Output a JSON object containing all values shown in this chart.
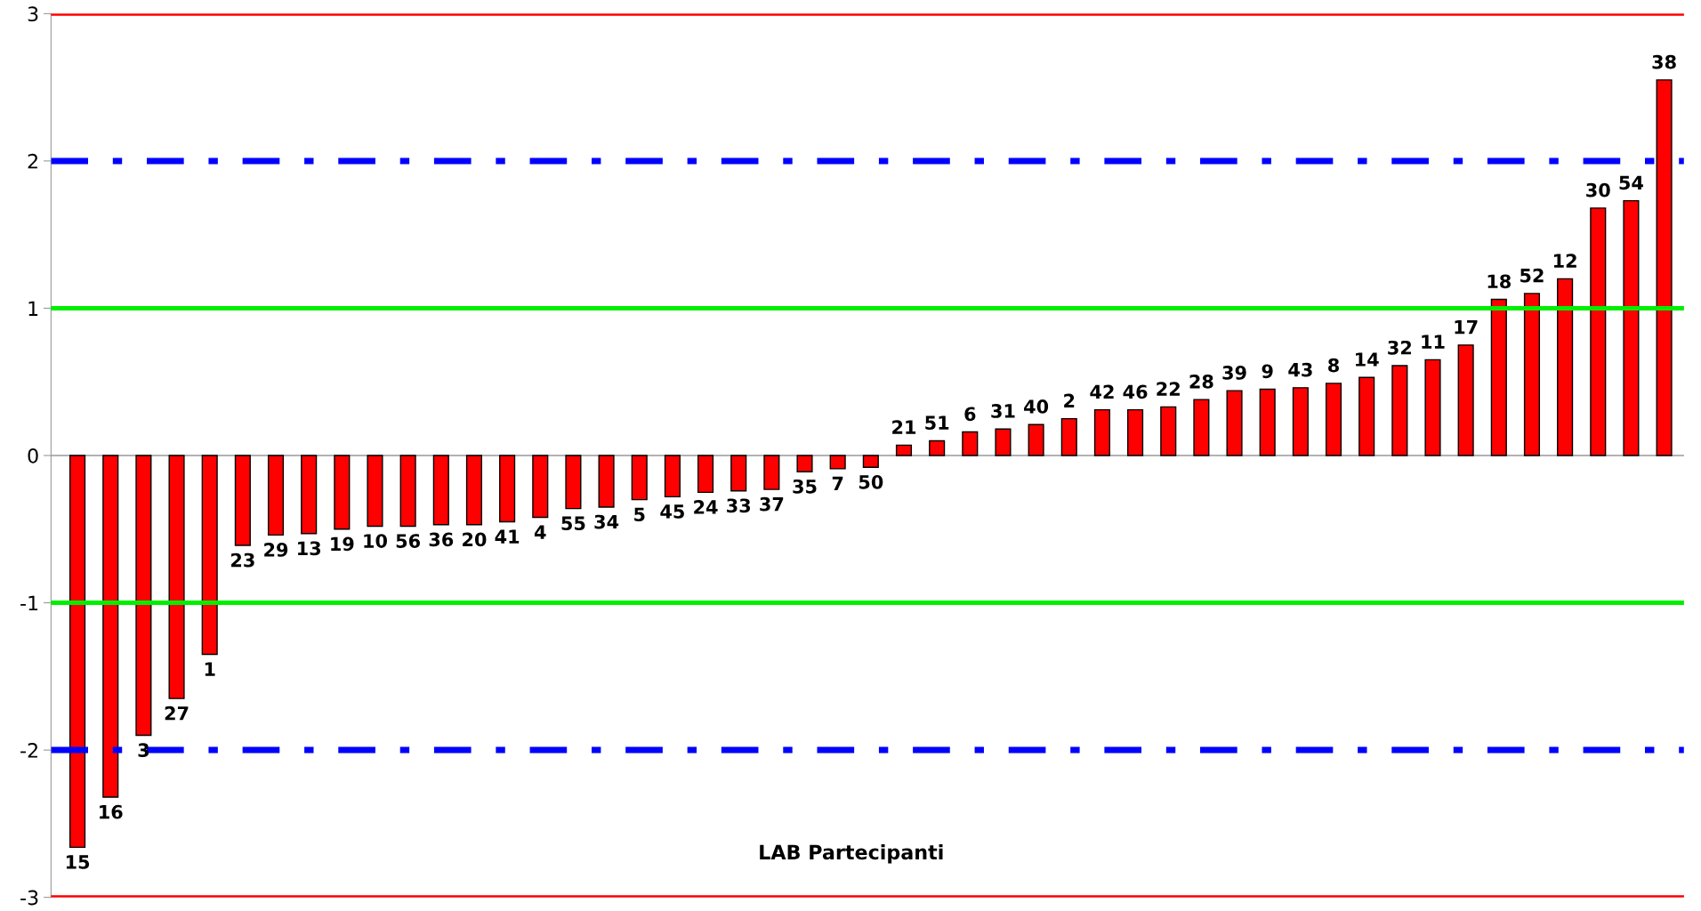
{
  "chart_data": {
    "type": "bar",
    "xlabel": "LAB Partecipanti",
    "categories": [
      "15",
      "16",
      "3",
      "27",
      "1",
      "23",
      "29",
      "13",
      "19",
      "10",
      "56",
      "36",
      "20",
      "41",
      "4",
      "55",
      "34",
      "5",
      "45",
      "24",
      "33",
      "37",
      "35",
      "7",
      "50",
      "21",
      "51",
      "6",
      "31",
      "40",
      "2",
      "42",
      "46",
      "22",
      "28",
      "39",
      "9",
      "43",
      "8",
      "14",
      "32",
      "11",
      "17",
      "18",
      "52",
      "12",
      "30",
      "54",
      "38"
    ],
    "series": [
      {
        "color": "#ff0000",
        "values": [
          -2.66,
          -2.32,
          -1.9,
          -1.65,
          -1.35,
          -0.61,
          -0.54,
          -0.53,
          -0.5,
          -0.48,
          -0.48,
          -0.47,
          -0.47,
          -0.45,
          -0.42,
          -0.36,
          -0.35,
          -0.3,
          -0.28,
          -0.25,
          -0.24,
          -0.23,
          -0.11,
          -0.09,
          -0.08,
          0.07,
          0.1,
          0.16,
          0.18,
          0.21,
          0.25,
          0.31,
          0.31,
          0.33,
          0.38,
          0.44,
          0.45,
          0.46,
          0.49,
          0.53,
          0.61,
          0.65,
          0.75,
          1.06,
          1.1,
          1.2,
          1.68,
          1.73,
          2.55
        ]
      }
    ],
    "ylim": [
      -3,
      3
    ],
    "yticks": [
      -3,
      -2,
      -1,
      0,
      1,
      2,
      3
    ],
    "tick_labels": "y",
    "ref_lines": [
      {
        "axis": "y",
        "value": 3,
        "color": "#ff0000",
        "line_style": "solid"
      },
      {
        "axis": "y",
        "value": -3,
        "color": "#ff0000",
        "line_style": "solid"
      },
      {
        "axis": "y",
        "value": 2,
        "color": "#0000ff",
        "line_style": "dashdot"
      },
      {
        "axis": "y",
        "value": -2,
        "color": "#0000ff",
        "line_style": "dashdot"
      },
      {
        "axis": "y",
        "value": 1,
        "color": "#00ee00",
        "line_style": "solid"
      },
      {
        "axis": "y",
        "value": -1,
        "color": "#00ee00",
        "line_style": "solid"
      }
    ]
  }
}
